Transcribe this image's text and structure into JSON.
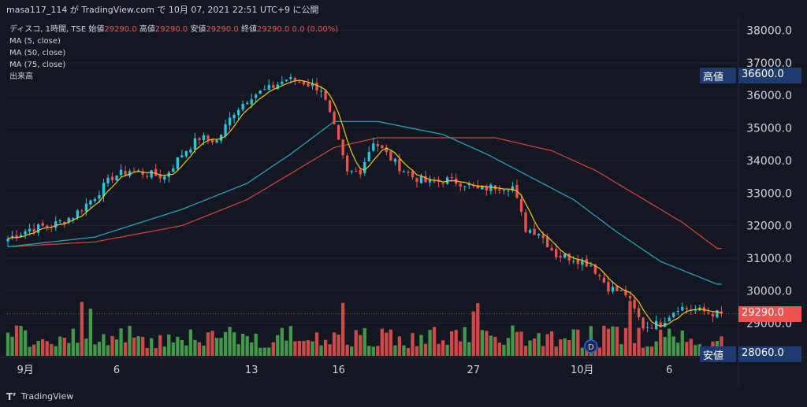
{
  "header": {
    "text": "masa117_114 が TradingView.com で 10月 07, 2021 22:51 UTC+9 に公開"
  },
  "legend": {
    "symbol": "ディスコ, 1時間, TSE",
    "ohlc_label_open": "始値",
    "ohlc_open": "29290.0",
    "ohlc_label_high": "高値",
    "ohlc_high": "29290.0",
    "ohlc_label_low": "安値",
    "ohlc_low": "29290.0",
    "ohlc_label_close": "終値",
    "ohlc_close": "29290.0",
    "change": "0.0 (0.00%)",
    "ma1": "MA (5, close)",
    "ma2": "MA (50, close)",
    "ma3": "MA (75, close)",
    "volume": "出来高"
  },
  "tags": {
    "high_label": "高値",
    "high_value": "36600.0",
    "current_value": "29290.0",
    "low_label": "安値",
    "low_value": "28060.0"
  },
  "footer": {
    "logo": "T’",
    "brand": "TradingView"
  },
  "colors": {
    "background": "#131722",
    "up": "#26c6da",
    "down": "#ef5350",
    "vol_up": "#4caf50",
    "vol_down": "#ef5350",
    "ma5": "#f5c518",
    "ma50": "#2aa7c4",
    "ma75": "#d9443a",
    "tag_blue": "#1e3a6e",
    "tag_red": "#ef5350"
  },
  "chart_data": {
    "type": "candlestick",
    "title": "ディスコ, 1時間, TSE",
    "y_ticks": [
      29000,
      30000,
      31000,
      32000,
      33000,
      34000,
      35000,
      36000,
      37000,
      38000
    ],
    "y_tick_labels": [
      "29000.0",
      "30000.0",
      "31000.0",
      "32000.0",
      "33000.0",
      "34000.0",
      "35000.0",
      "36000.0",
      "37000.0",
      "38000.0"
    ],
    "ylim": [
      28000,
      38400
    ],
    "x_tick_labels": [
      {
        "label": "9月",
        "idx": 4
      },
      {
        "label": "6",
        "idx": 25
      },
      {
        "label": "13",
        "idx": 56
      },
      {
        "label": "16",
        "idx": 76
      },
      {
        "label": "27",
        "idx": 107
      },
      {
        "label": "10月",
        "idx": 132
      },
      {
        "label": "6",
        "idx": 152
      }
    ],
    "n_bars": 165,
    "close_anchors": [
      [
        0,
        31600
      ],
      [
        5,
        31900
      ],
      [
        10,
        32000
      ],
      [
        15,
        32300
      ],
      [
        20,
        32900
      ],
      [
        24,
        33500
      ],
      [
        28,
        33700
      ],
      [
        32,
        33600
      ],
      [
        36,
        33500
      ],
      [
        40,
        34200
      ],
      [
        44,
        34700
      ],
      [
        48,
        34600
      ],
      [
        52,
        35500
      ],
      [
        56,
        36000
      ],
      [
        60,
        36200
      ],
      [
        64,
        36500
      ],
      [
        68,
        36400
      ],
      [
        72,
        36200
      ],
      [
        75,
        35000
      ],
      [
        78,
        33600
      ],
      [
        81,
        33700
      ],
      [
        84,
        34600
      ],
      [
        87,
        34200
      ],
      [
        90,
        33800
      ],
      [
        93,
        33500
      ],
      [
        97,
        33300
      ],
      [
        101,
        33400
      ],
      [
        105,
        33300
      ],
      [
        108,
        33100
      ],
      [
        112,
        33200
      ],
      [
        116,
        33200
      ],
      [
        119,
        31900
      ],
      [
        122,
        31800
      ],
      [
        126,
        31100
      ],
      [
        130,
        31000
      ],
      [
        134,
        30800
      ],
      [
        138,
        30100
      ],
      [
        142,
        29900
      ],
      [
        146,
        28900
      ],
      [
        150,
        29000
      ],
      [
        154,
        29500
      ],
      [
        158,
        29400
      ],
      [
        163,
        29290
      ]
    ],
    "ma50_anchors": [
      [
        0,
        31350
      ],
      [
        20,
        31650
      ],
      [
        40,
        32500
      ],
      [
        55,
        33300
      ],
      [
        65,
        34200
      ],
      [
        75,
        35200
      ],
      [
        85,
        35200
      ],
      [
        100,
        34800
      ],
      [
        110,
        34200
      ],
      [
        120,
        33500
      ],
      [
        130,
        32800
      ],
      [
        140,
        31800
      ],
      [
        150,
        30900
      ],
      [
        163,
        30200
      ]
    ],
    "ma75_anchors": [
      [
        0,
        31350
      ],
      [
        20,
        31500
      ],
      [
        40,
        32000
      ],
      [
        55,
        32800
      ],
      [
        65,
        33600
      ],
      [
        75,
        34400
      ],
      [
        85,
        34700
      ],
      [
        100,
        34700
      ],
      [
        112,
        34700
      ],
      [
        125,
        34300
      ],
      [
        135,
        33700
      ],
      [
        145,
        32900
      ],
      [
        155,
        32100
      ],
      [
        163,
        31300
      ]
    ],
    "volume_max_frac": 0.75,
    "high_marker": 36600,
    "low_marker": 28060,
    "last_close": 29290
  }
}
